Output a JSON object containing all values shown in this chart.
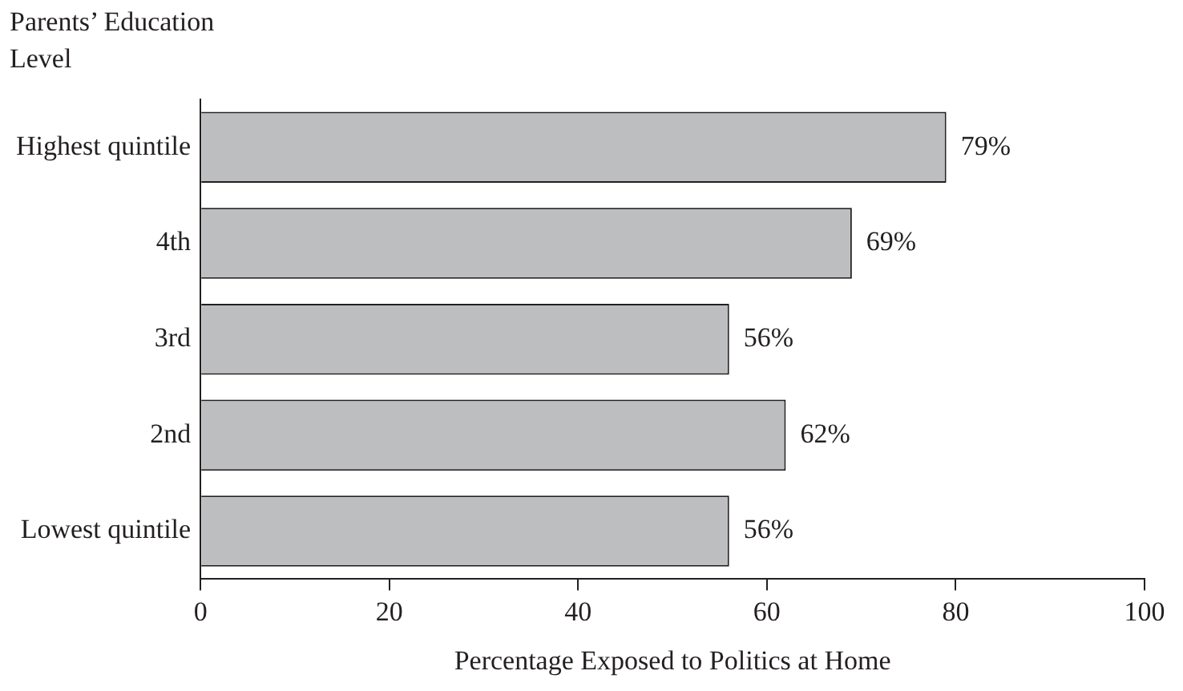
{
  "chart_data": {
    "type": "bar",
    "orientation": "horizontal",
    "ylabel": "Parents’ Education Level",
    "xlabel": "Percentage Exposed to Politics at Home",
    "categories": [
      "Highest quintile",
      "4th",
      "3rd",
      "2nd",
      "Lowest quintile"
    ],
    "values": [
      79,
      69,
      56,
      62,
      56
    ],
    "value_labels": [
      "79%",
      "69%",
      "56%",
      "62%",
      "56%"
    ],
    "color": "#bcbec0",
    "xlim": [
      0,
      100
    ],
    "xticks": [
      0,
      20,
      40,
      60,
      80,
      100
    ],
    "grid": false,
    "legend": false
  }
}
